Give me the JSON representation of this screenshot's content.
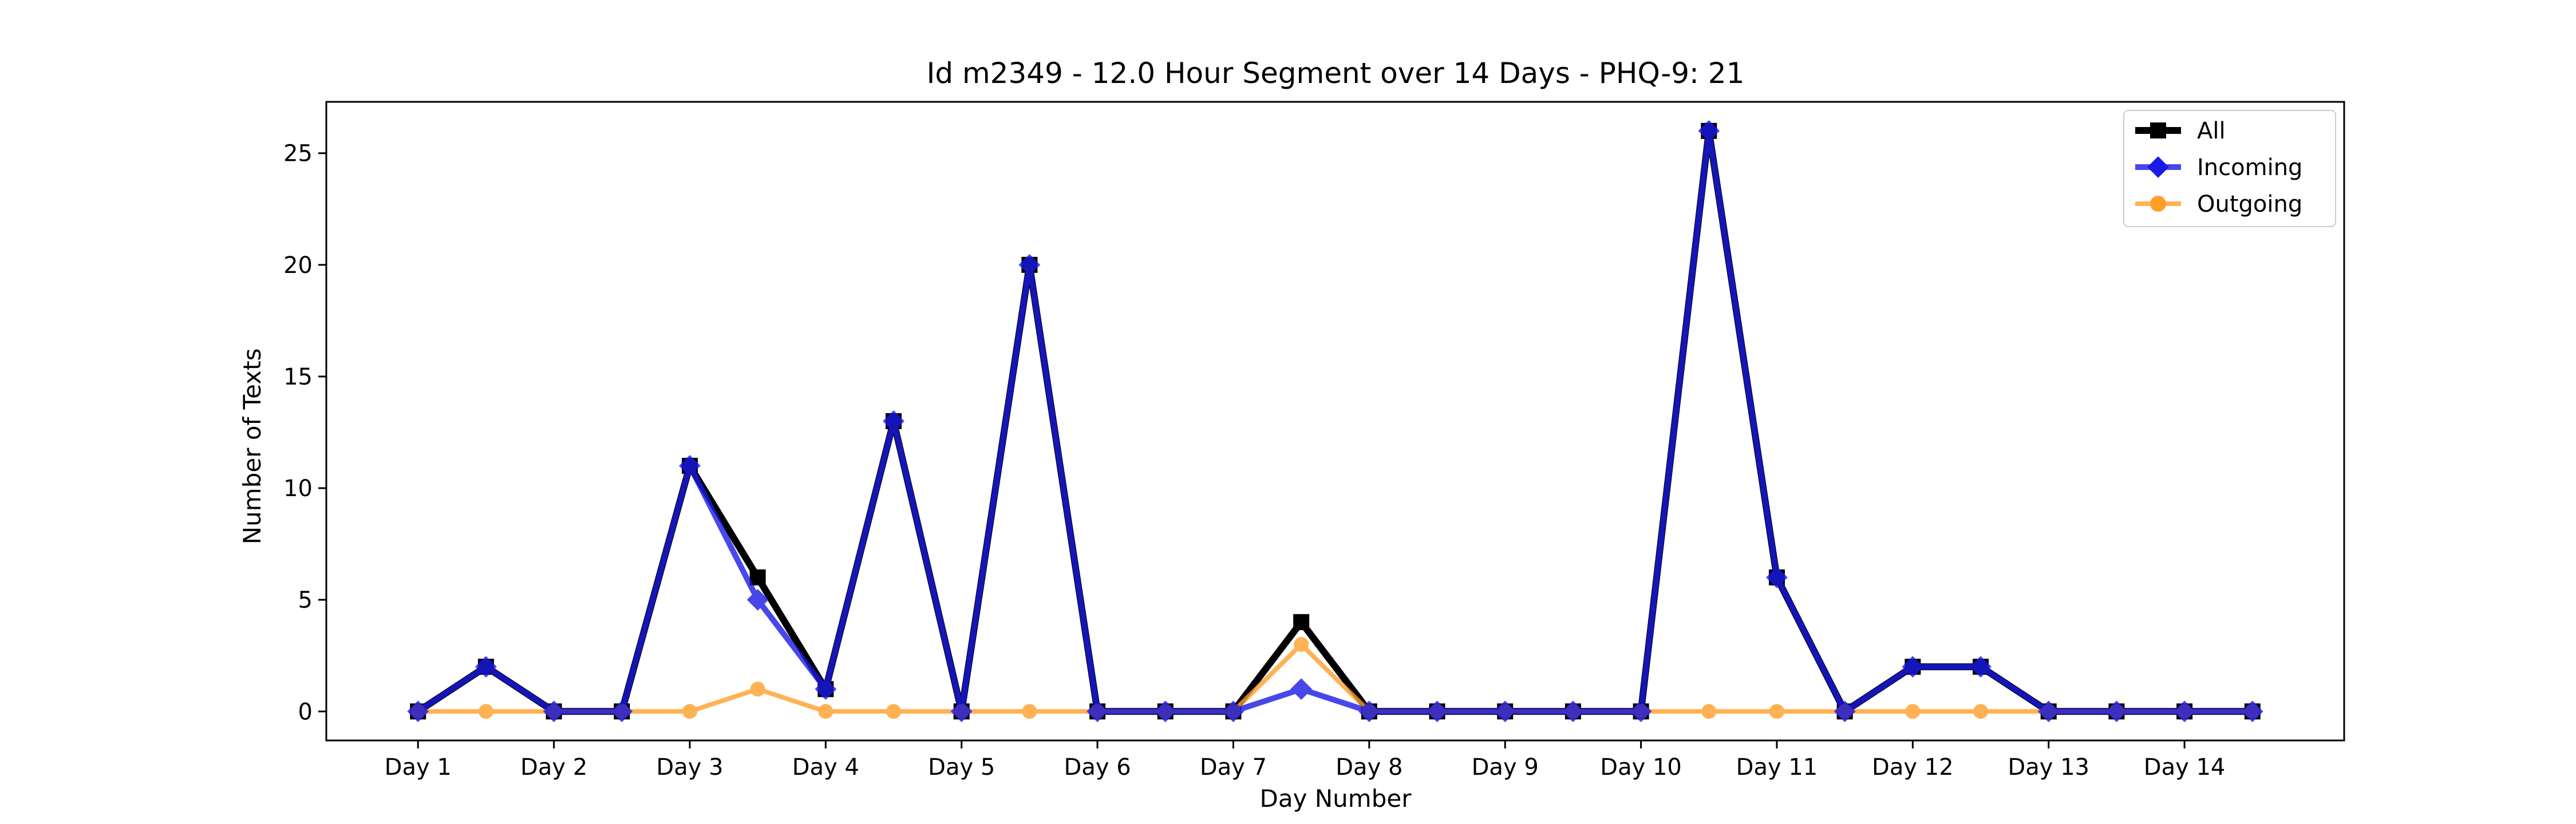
{
  "chart_data": {
    "type": "line",
    "title": "Id m2349 - 12.0 Hour Segment over 14 Days - PHQ-9: 21",
    "xlabel": "Day Number",
    "ylabel": "Number of Texts",
    "ylim": [
      -1.3,
      27.3
    ],
    "xlim": [
      -1.35,
      28.35
    ],
    "yticks": [
      0,
      5,
      10,
      15,
      20,
      25
    ],
    "xticks": [
      {
        "x": 0,
        "label": "Day 1"
      },
      {
        "x": 2,
        "label": "Day 2"
      },
      {
        "x": 4,
        "label": "Day 3"
      },
      {
        "x": 6,
        "label": "Day 4"
      },
      {
        "x": 8,
        "label": "Day 5"
      },
      {
        "x": 10,
        "label": "Day 6"
      },
      {
        "x": 12,
        "label": "Day 7"
      },
      {
        "x": 14,
        "label": "Day 8"
      },
      {
        "x": 16,
        "label": "Day 9"
      },
      {
        "x": 18,
        "label": "Day 10"
      },
      {
        "x": 20,
        "label": "Day 11"
      },
      {
        "x": 22,
        "label": "Day 12"
      },
      {
        "x": 24,
        "label": "Day 13"
      },
      {
        "x": 26,
        "label": "Day 14"
      }
    ],
    "x": [
      0,
      1,
      2,
      3,
      4,
      5,
      6,
      7,
      8,
      9,
      10,
      11,
      12,
      13,
      14,
      15,
      16,
      17,
      18,
      19,
      20,
      21,
      22,
      23,
      24,
      25,
      26,
      27
    ],
    "series": [
      {
        "name": "All",
        "color": "#000000",
        "marker": "square",
        "values": [
          0,
          2,
          0,
          0,
          11,
          6,
          1,
          13,
          0,
          20,
          0,
          0,
          0,
          4,
          0,
          0,
          0,
          0,
          0,
          26,
          6,
          0,
          2,
          2,
          0,
          0,
          0,
          0
        ]
      },
      {
        "name": "Outgoing",
        "color": "#ff9f2a",
        "marker": "circle",
        "values": [
          0,
          0,
          0,
          0,
          0,
          1,
          0,
          0,
          0,
          0,
          0,
          0,
          0,
          3,
          0,
          0,
          0,
          0,
          0,
          0,
          0,
          0,
          0,
          0,
          0,
          0,
          0,
          0
        ]
      },
      {
        "name": "Incoming",
        "color": "#1a1ae6",
        "marker": "diamond",
        "values": [
          0,
          2,
          0,
          0,
          11,
          5,
          1,
          13,
          0,
          20,
          0,
          0,
          0,
          1,
          0,
          0,
          0,
          0,
          0,
          26,
          6,
          0,
          2,
          2,
          0,
          0,
          0,
          0
        ]
      }
    ],
    "legend": {
      "position": "top-right",
      "entries": [
        {
          "label": "All",
          "color": "#000000",
          "marker": "square"
        },
        {
          "label": "Incoming",
          "color": "#1a1ae6",
          "marker": "diamond"
        },
        {
          "label": "Outgoing",
          "color": "#ff9f2a",
          "marker": "circle"
        }
      ]
    }
  }
}
